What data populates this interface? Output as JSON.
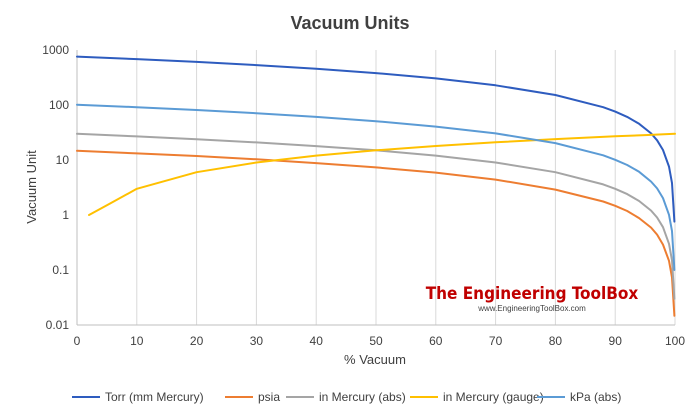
{
  "chart_data": {
    "type": "line",
    "title": "Vacuum Units",
    "xlabel": "% Vacuum",
    "ylabel": "Vacuum Unit",
    "xlim": [
      0,
      100
    ],
    "ylim": [
      0.01,
      1000
    ],
    "yscale": "log",
    "x_ticks": [
      "0",
      "10",
      "20",
      "30",
      "40",
      "50",
      "60",
      "70",
      "80",
      "90",
      "100"
    ],
    "y_ticks": [
      "0.01",
      "0.1",
      "1",
      "10",
      "100",
      "1000"
    ],
    "grid": "vertical",
    "legend_position": "bottom",
    "series": [
      {
        "name": "Torr (mm Mercury)",
        "color": "#2e5cbf",
        "x": [
          0,
          10,
          20,
          30,
          40,
          50,
          60,
          70,
          80,
          88,
          90,
          92,
          94,
          96,
          97,
          98,
          99,
          99.5,
          99.9
        ],
        "y": [
          760,
          684,
          608,
          532,
          456,
          380,
          304,
          228,
          152,
          91.2,
          76,
          60.8,
          45.6,
          30.4,
          22.8,
          15.2,
          7.6,
          3.8,
          0.76
        ]
      },
      {
        "name": "psia",
        "color": "#ed7d31",
        "x": [
          0,
          10,
          20,
          30,
          40,
          50,
          60,
          70,
          80,
          88,
          90,
          92,
          94,
          96,
          97,
          98,
          99,
          99.5,
          99.9
        ],
        "y": [
          14.7,
          13.2,
          11.8,
          10.3,
          8.8,
          7.35,
          5.9,
          4.4,
          2.9,
          1.76,
          1.47,
          1.18,
          0.88,
          0.59,
          0.44,
          0.29,
          0.147,
          0.073,
          0.0147
        ]
      },
      {
        "name": "in Mercury (abs)",
        "color": "#a5a5a5",
        "x": [
          0,
          10,
          20,
          30,
          40,
          50,
          60,
          70,
          80,
          88,
          90,
          92,
          94,
          96,
          97,
          98,
          99,
          99.5,
          99.9
        ],
        "y": [
          29.9,
          26.9,
          23.9,
          20.9,
          17.9,
          15,
          12,
          9,
          6,
          3.6,
          3,
          2.4,
          1.8,
          1.2,
          0.9,
          0.6,
          0.3,
          0.15,
          0.03
        ]
      },
      {
        "name": "in Mercury (gauge)",
        "color": "#ffc000",
        "x": [
          2,
          5,
          10,
          20,
          30,
          40,
          50,
          60,
          70,
          80,
          90,
          95,
          100
        ],
        "y": [
          1,
          1.5,
          3,
          6,
          9,
          12,
          15,
          18,
          21,
          24,
          27,
          28.4,
          29.9
        ]
      },
      {
        "name": "kPa (abs)",
        "color": "#5b9bd5",
        "x": [
          0,
          10,
          20,
          30,
          40,
          50,
          60,
          70,
          80,
          88,
          90,
          92,
          94,
          96,
          97,
          98,
          99,
          99.5,
          99.9
        ],
        "y": [
          101.3,
          91.2,
          81,
          70.9,
          60.8,
          50.7,
          40.5,
          30.4,
          20.3,
          12.2,
          10.1,
          8.1,
          6.1,
          4.05,
          3.04,
          2.03,
          1.01,
          0.51,
          0.1
        ]
      }
    ]
  },
  "watermark": {
    "title": "The Engineering ToolBox",
    "url": "www.EngineeringToolBox.com"
  }
}
